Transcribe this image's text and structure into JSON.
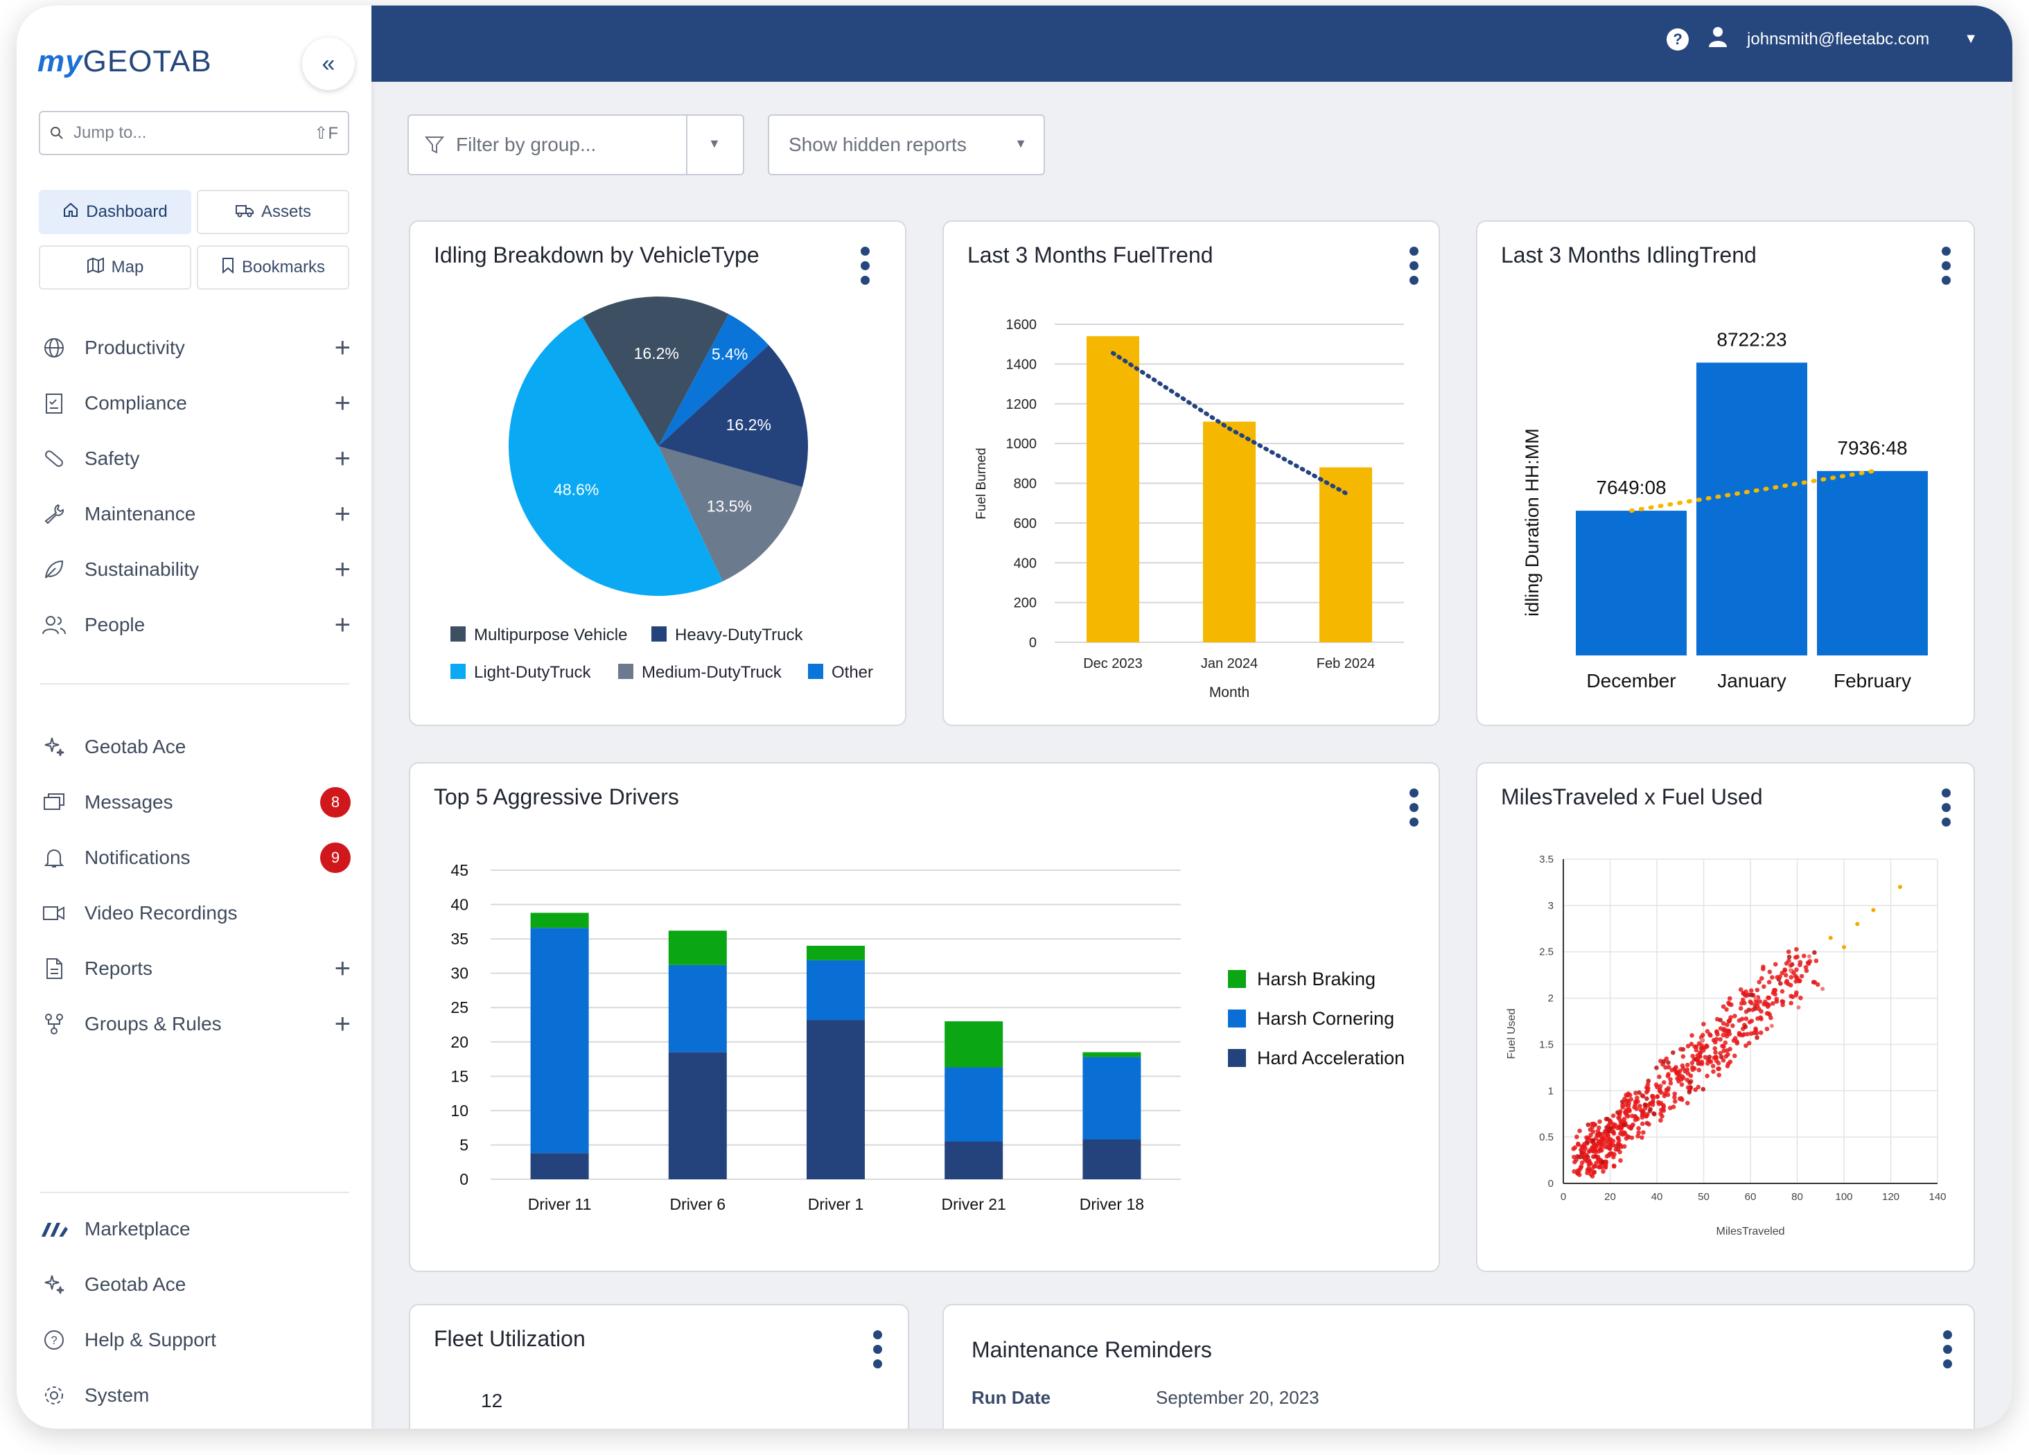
{
  "brand": {
    "prefix": "my",
    "name": "GEOTAB"
  },
  "sidebar": {
    "jump_placeholder": "Jump to...",
    "jump_shortcut": "⇧F",
    "quick": {
      "dashboard": "Dashboard",
      "assets": "Assets",
      "map": "Map",
      "bookmarks": "Bookmarks"
    },
    "sections": [
      {
        "label": "Productivity"
      },
      {
        "label": "Compliance"
      },
      {
        "label": "Safety"
      },
      {
        "label": "Maintenance"
      },
      {
        "label": "Sustainability"
      },
      {
        "label": "People"
      }
    ],
    "tools": [
      {
        "label": "Geotab Ace"
      },
      {
        "label": "Messages",
        "badge": "8"
      },
      {
        "label": "Notifications",
        "badge": "9"
      },
      {
        "label": "Video Recordings"
      },
      {
        "label": "Reports"
      },
      {
        "label": "Groups & Rules"
      }
    ],
    "footer": [
      {
        "label": "Marketplace"
      },
      {
        "label": "Geotab Ace"
      },
      {
        "label": "Help & Support"
      },
      {
        "label": "System"
      }
    ]
  },
  "header": {
    "user_email": "johnsmith@fleetabc.com"
  },
  "filters": {
    "group_placeholder": "Filter by group...",
    "hidden_reports": "Show hidden reports"
  },
  "cards": {
    "idling_breakdown": "Idling Breakdown by VehicleType",
    "fuel_trend": "Last 3 Months FuelTrend",
    "idling_trend": "Last 3 Months IdlingTrend",
    "aggressive": "Top 5 Aggressive Drivers",
    "miles_fuel": "MilesTraveled x Fuel Used",
    "fleet_util": "Fleet Utilization",
    "fleet_util_value": "12",
    "maintenance": "Maintenance Reminders",
    "run_date_label": "Run Date",
    "run_date_value": "September 20, 2023"
  },
  "colors": {
    "navy": "#25477d",
    "accent_blue": "#1b6fd6",
    "badge_red": "#d0181c"
  },
  "chart_data": [
    {
      "type": "pie",
      "title": "Idling Breakdown by VehicleType",
      "slices": [
        {
          "name": "Multipurpose Vehicle",
          "value": 16.2,
          "label": "16.2%",
          "color": "#3d4f63"
        },
        {
          "name": "Other",
          "value": 5.4,
          "label": "5.4%",
          "color": "#0a74d9"
        },
        {
          "name": "Heavy-DutyTruck",
          "value": 16.2,
          "label": "16.2%",
          "color": "#24437d"
        },
        {
          "name": "Medium-DutyTruck",
          "value": 13.5,
          "label": "13.5%",
          "color": "#6b7a8d"
        },
        {
          "name": "Light-DutyTruck",
          "value": 48.6,
          "label": "48.6%",
          "color": "#0aa9f4"
        }
      ],
      "legend": [
        {
          "name": "Multipurpose Vehicle",
          "color": "#3d4f63"
        },
        {
          "name": "Heavy-DutyTruck",
          "color": "#24437d"
        },
        {
          "name": "Light-DutyTruck",
          "color": "#0aa9f4"
        },
        {
          "name": "Medium-DutyTruck",
          "color": "#6b7a8d"
        },
        {
          "name": "Other",
          "color": "#0a74d9"
        }
      ]
    },
    {
      "type": "bar",
      "title": "Last 3 Months FuelTrend",
      "categories": [
        "Dec 2023",
        "Jan 2024",
        "Feb 2024"
      ],
      "values": [
        1540,
        1110,
        880
      ],
      "trendline": [
        1455,
        1075,
        750
      ],
      "xlabel": "Month",
      "ylabel": "Fuel Burned",
      "ylim": [
        0,
        1600
      ],
      "yticks": [
        0,
        200,
        400,
        600,
        800,
        1000,
        1200,
        1400,
        1600
      ],
      "color": "#f6b700"
    },
    {
      "type": "bar",
      "title": "Last 3 Months IdlingTrend",
      "categories": [
        "December",
        "January",
        "February"
      ],
      "values": [
        7649.13,
        8722.38,
        7936.8
      ],
      "labels": [
        "7649:08",
        "8722:23",
        "7936:48"
      ],
      "trendline": [
        7649,
        7790,
        7935
      ],
      "ylabel": "idling Duration HH:MM",
      "ylim": [
        6600,
        8900
      ],
      "color": "#0a6fd4"
    },
    {
      "type": "bar",
      "title": "Top 5 Aggressive Drivers",
      "categories": [
        "Driver 11",
        "Driver 6",
        "Driver 1",
        "Driver 21",
        "Driver 18"
      ],
      "series": [
        {
          "name": "Hard Acceleration",
          "values": [
            3.8,
            18.5,
            23.2,
            5.5,
            5.8
          ],
          "color": "#24437d"
        },
        {
          "name": "Harsh Cornering",
          "values": [
            32.8,
            12.7,
            8.7,
            10.8,
            12.0
          ],
          "color": "#0a6fd4"
        },
        {
          "name": "Harsh Braking",
          "values": [
            2.2,
            5.0,
            2.1,
            6.7,
            0.7
          ],
          "color": "#0aa613"
        }
      ],
      "legend": [
        "Harsh Braking",
        "Harsh Cornering",
        "Hard Acceleration"
      ],
      "ylim": [
        0,
        45
      ],
      "yticks": [
        0,
        5,
        10,
        15,
        20,
        25,
        30,
        35,
        40,
        45
      ]
    },
    {
      "type": "scatter",
      "title": "MilesTraveled x Fuel Used",
      "xlabel": "MilesTraveled",
      "ylabel": "Fuel Used",
      "xlim": [
        0,
        140
      ],
      "ylim": [
        0,
        3.5
      ],
      "xticks": [
        0,
        20,
        40,
        50,
        60,
        80,
        100,
        120,
        140
      ],
      "yticks": [
        0,
        0.5,
        1,
        1.5,
        2,
        2.5,
        3,
        3.5
      ],
      "ytick_labels": [
        "0",
        "0.5",
        "1",
        "1.5",
        "2",
        "2.5",
        "3",
        "3.5"
      ],
      "outliers": [
        [
          126,
          3.2
        ],
        [
          116,
          2.95
        ],
        [
          105,
          2.55
        ],
        [
          97,
          2.1
        ],
        [
          88,
          1.9
        ],
        [
          78,
          1.7
        ],
        [
          52,
          1.55
        ],
        [
          110,
          2.8
        ],
        [
          100,
          2.65
        ],
        [
          92,
          2.45
        ],
        [
          85,
          2.3
        ],
        [
          72,
          2.0
        ]
      ],
      "trend": {
        "x0": 10,
        "y0": 0.3,
        "x1": 92,
        "y1": 2.4,
        "n": 650
      }
    }
  ]
}
